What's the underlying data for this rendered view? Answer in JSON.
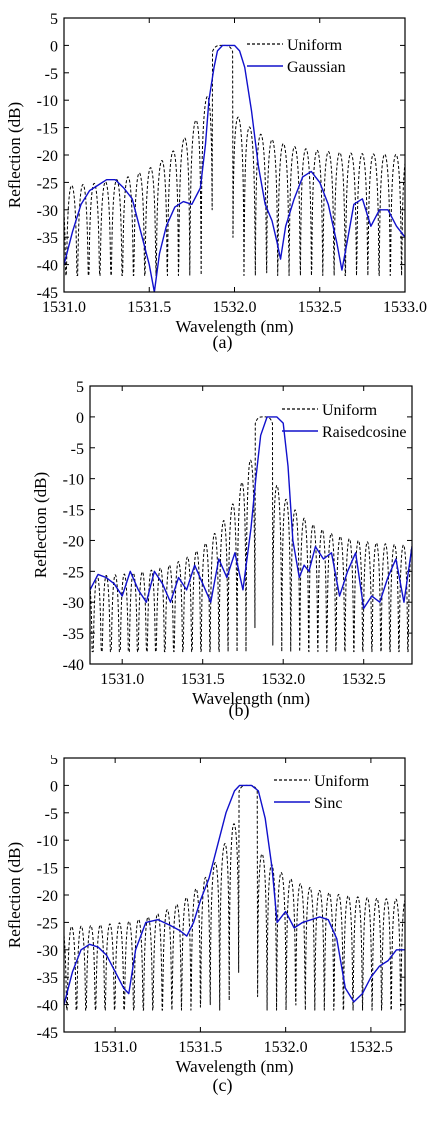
{
  "chart_data": [
    {
      "type": "line",
      "caption": "(a)",
      "xlabel": "Wavelength (nm)",
      "ylabel": "Reflection (dB)",
      "xlim": [
        1531.0,
        1533.0
      ],
      "ylim": [
        -45,
        5
      ],
      "xticks": [
        1531.0,
        1531.5,
        1532.0,
        1532.5,
        1533.0
      ],
      "xtick_labels": [
        "1531.0",
        "1531.5",
        "1532.0",
        "1532.5",
        "1533.0"
      ],
      "yticks": [
        5,
        0,
        -5,
        -10,
        -15,
        -20,
        -25,
        -30,
        -35,
        -40,
        -45
      ],
      "ytick_labels": [
        "5",
        "0",
        "-5",
        "-10",
        "-15",
        "-20",
        "-25",
        "-30",
        "-35",
        "-40",
        "-45"
      ],
      "legend_position": "top-right",
      "series": [
        {
          "name": "Uniform",
          "style": "dashed",
          "color": "#000000",
          "center": 1531.93,
          "half_width": 0.06,
          "lobe_period": 0.066,
          "envelope_floor": -26,
          "envelope_slope": 12,
          "envelope_cap": -7,
          "notch_depth": -42,
          "envelope_floor_right": -20,
          "envelope_slope_right": 5
        },
        {
          "name": "Gaussian",
          "style": "solid",
          "color": "#1010cc",
          "x": [
            1531.0,
            1531.05,
            1531.1,
            1531.15,
            1531.2,
            1531.25,
            1531.3,
            1531.35,
            1531.4,
            1531.45,
            1531.5,
            1531.53,
            1531.56,
            1531.6,
            1531.65,
            1531.7,
            1531.75,
            1531.8,
            1531.83,
            1531.85,
            1531.88,
            1531.9,
            1531.93,
            1531.96,
            1532.0,
            1532.03,
            1532.06,
            1532.1,
            1532.14,
            1532.18,
            1532.22,
            1532.25,
            1532.27,
            1532.3,
            1532.35,
            1532.4,
            1532.45,
            1532.5,
            1532.55,
            1532.6,
            1532.63,
            1532.66,
            1532.7,
            1532.75,
            1532.8,
            1532.85,
            1532.9,
            1532.95,
            1533.0
          ],
          "values": [
            -40,
            -34,
            -29,
            -26.5,
            -25.5,
            -24.5,
            -24.5,
            -26,
            -28,
            -34,
            -40,
            -45,
            -38,
            -33,
            -29.5,
            -28.5,
            -29,
            -26,
            -18,
            -10,
            -4,
            -1,
            0,
            0,
            0,
            -1,
            -4,
            -12,
            -22,
            -29,
            -32,
            -36,
            -39,
            -33,
            -28,
            -24,
            -23,
            -25,
            -29,
            -36,
            -41,
            -36,
            -29,
            -28,
            -33,
            -30,
            -30,
            -33,
            -35
          ]
        }
      ]
    },
    {
      "type": "line",
      "caption": "(b)",
      "xlabel": "Wavelength (nm)",
      "ylabel": "Reflection (dB)",
      "xlim": [
        1530.8,
        1532.8
      ],
      "ylim": [
        -40,
        5
      ],
      "xticks": [
        1531.0,
        1531.5,
        1532.0,
        1532.5
      ],
      "xtick_labels": [
        "1531.0",
        "1531.5",
        "1532.0",
        "1532.5"
      ],
      "yticks": [
        5,
        0,
        -5,
        -10,
        -15,
        -20,
        -25,
        -30,
        -35,
        -40
      ],
      "ytick_labels": [
        "5",
        "0",
        "-5",
        "-10",
        "-15",
        "-20",
        "-25",
        "-30",
        "-35",
        "-40"
      ],
      "legend_position": "top-right",
      "series": [
        {
          "name": "Uniform",
          "style": "dashed",
          "color": "#000000",
          "center": 1531.88,
          "half_width": 0.055,
          "lobe_period": 0.056,
          "envelope_floor": -26,
          "envelope_slope": 14,
          "envelope_cap": -7,
          "notch_depth": -38,
          "envelope_floor_right": -21,
          "envelope_slope_right": 7
        },
        {
          "name": "Raisedcosine",
          "style": "solid",
          "color": "#1010cc",
          "x": [
            1530.8,
            1530.85,
            1530.9,
            1530.95,
            1531.0,
            1531.05,
            1531.1,
            1531.15,
            1531.2,
            1531.25,
            1531.3,
            1531.35,
            1531.4,
            1531.45,
            1531.5,
            1531.55,
            1531.6,
            1531.65,
            1531.7,
            1531.75,
            1531.8,
            1531.83,
            1531.86,
            1531.9,
            1531.93,
            1531.96,
            1532.0,
            1532.03,
            1532.06,
            1532.1,
            1532.13,
            1532.16,
            1532.2,
            1532.25,
            1532.3,
            1532.35,
            1532.4,
            1532.45,
            1532.5,
            1532.55,
            1532.6,
            1532.65,
            1532.7,
            1532.75,
            1532.8
          ],
          "values": [
            -28,
            -25.5,
            -26,
            -27,
            -29,
            -25,
            -28,
            -30,
            -25,
            -27,
            -30,
            -26,
            -28,
            -24,
            -27,
            -30,
            -23,
            -26,
            -22,
            -28,
            -18,
            -10,
            -3,
            0,
            0,
            0,
            -1,
            -8,
            -20,
            -26,
            -24,
            -25,
            -21,
            -23,
            -22,
            -29,
            -25,
            -22,
            -31,
            -29,
            -30,
            -26,
            -23,
            -30,
            -21
          ]
        }
      ]
    },
    {
      "type": "line",
      "caption": "(c)",
      "xlabel": "Wavelength (nm)",
      "ylabel": "Reflection (dB)",
      "xlim": [
        1530.7,
        1532.7
      ],
      "ylim": [
        -45,
        5
      ],
      "xticks": [
        1531.0,
        1531.5,
        1532.0,
        1532.5
      ],
      "xtick_labels": [
        "1531.0",
        "1531.5",
        "1532.0",
        "1532.5"
      ],
      "yticks": [
        5,
        0,
        -5,
        -10,
        -15,
        -20,
        -25,
        -30,
        -35,
        -40,
        -45
      ],
      "ytick_labels": [
        "5",
        "0",
        "-5",
        "-10",
        "-15",
        "-20",
        "-25",
        "-30",
        "-35",
        "-40",
        "-45"
      ],
      "legend_position": "top-right",
      "series": [
        {
          "name": "Uniform",
          "style": "dashed",
          "color": "#000000",
          "center": 1531.78,
          "half_width": 0.055,
          "lobe_period": 0.056,
          "envelope_floor": -26,
          "envelope_slope": 14,
          "envelope_cap": -7,
          "notch_depth": -41,
          "envelope_floor_right": -21,
          "envelope_slope_right": 6
        },
        {
          "name": "Sinc",
          "style": "solid",
          "color": "#1010cc",
          "x": [
            1530.7,
            1530.75,
            1530.8,
            1530.85,
            1530.9,
            1530.95,
            1531.0,
            1531.05,
            1531.08,
            1531.12,
            1531.18,
            1531.25,
            1531.32,
            1531.38,
            1531.42,
            1531.46,
            1531.5,
            1531.55,
            1531.6,
            1531.65,
            1531.7,
            1531.73,
            1531.76,
            1531.8,
            1531.84,
            1531.88,
            1531.92,
            1531.95,
            1532.0,
            1532.05,
            1532.1,
            1532.15,
            1532.2,
            1532.25,
            1532.3,
            1532.35,
            1532.4,
            1532.45,
            1532.5,
            1532.55,
            1532.6,
            1532.65,
            1532.7
          ],
          "values": [
            -40,
            -34,
            -30,
            -29,
            -29.5,
            -31,
            -34,
            -37,
            -38,
            -30,
            -25,
            -24.5,
            -25.5,
            -26.5,
            -27.5,
            -25,
            -21,
            -17,
            -11,
            -5,
            -1,
            0,
            0,
            0,
            -1,
            -6,
            -15,
            -25,
            -23,
            -26,
            -25,
            -24.5,
            -24,
            -24.5,
            -28,
            -37,
            -39.5,
            -38,
            -35,
            -33,
            -32,
            -30,
            -30
          ]
        }
      ]
    }
  ]
}
